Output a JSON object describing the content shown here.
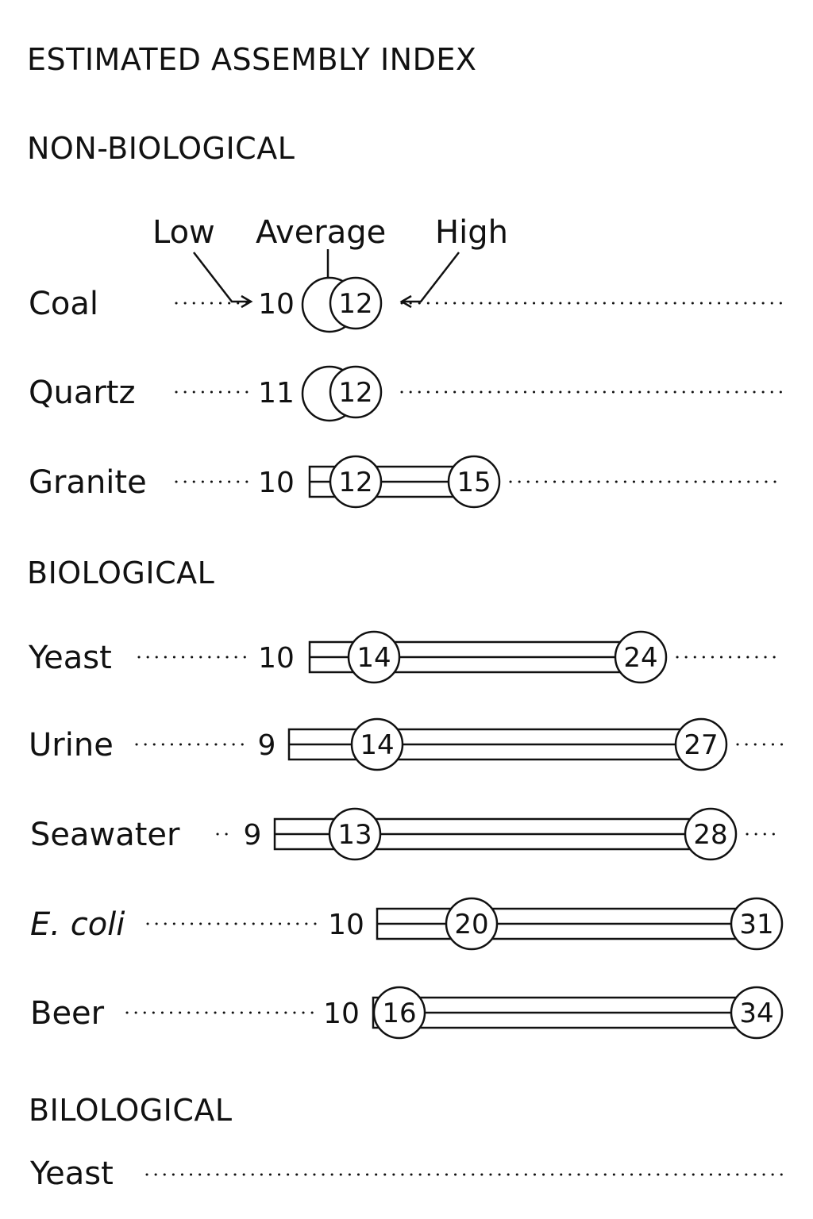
{
  "title": "ESTIMATED ASSEMBLY INDEX",
  "sections": [
    {
      "name": "NON-BIOLOGICAL"
    },
    {
      "name": "BIOLOGICAL"
    },
    {
      "name": "BILOLOGICAL"
    }
  ],
  "legend": {
    "low": "Low",
    "average": "Average",
    "high": "High"
  },
  "chart_data": {
    "type": "range",
    "title": "ESTIMATED ASSEMBLY INDEX",
    "xlabel": "",
    "ylabel": "",
    "series_fields": [
      "low",
      "average",
      "high"
    ],
    "rows": [
      {
        "group": "NON-BIOLOGICAL",
        "label": "Coal",
        "low": 10,
        "average": 12,
        "high": 12
      },
      {
        "group": "NON-BIOLOGICAL",
        "label": "Quartz",
        "low": 11,
        "average": 12,
        "high": 12
      },
      {
        "group": "NON-BIOLOGICAL",
        "label": "Granite",
        "low": 10,
        "average": 12,
        "high": 15
      },
      {
        "group": "BIOLOGICAL",
        "label": "Yeast",
        "low": 10,
        "average": 14,
        "high": 24
      },
      {
        "group": "BIOLOGICAL",
        "label": "Urine",
        "low": 9,
        "average": 14,
        "high": 27
      },
      {
        "group": "BIOLOGICAL",
        "label": "Seawater",
        "low": 9,
        "average": 13,
        "high": 28
      },
      {
        "group": "BIOLOGICAL",
        "label": "E. coli",
        "low": 10,
        "average": 20,
        "high": 31,
        "italic": true
      },
      {
        "group": "BIOLOGICAL",
        "label": "Beer",
        "low": 10,
        "average": 16,
        "high": 34
      },
      {
        "group": "BILOLOGICAL",
        "label": "Yeast",
        "low": null,
        "average": null,
        "high": null
      }
    ]
  }
}
